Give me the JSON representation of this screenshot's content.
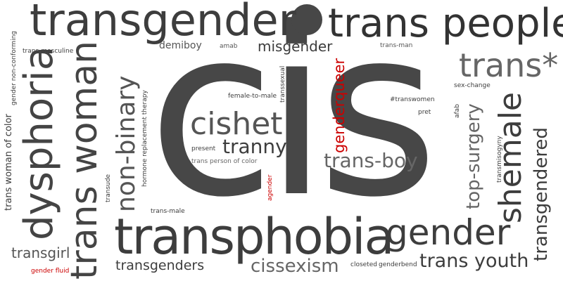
{
  "colors": {
    "background": "#ffffff",
    "primary": "#3d3d3d",
    "dark": "#333333",
    "mid": "#555555",
    "light": "#666666",
    "accent": "#cc0000"
  },
  "words": {
    "cis": "cis",
    "transgender": "transgender",
    "trans_people": "trans people",
    "trans_star": "trans*",
    "transphobia": "transphobia",
    "gender": "gender",
    "dysphoria": "dysphoria",
    "trans_woman": "trans woman",
    "non_binary": "non-binary",
    "shemale": "shemale",
    "transgendered": "transgendered",
    "top_surgery": "top-surgery",
    "cishet": "cishet",
    "tranny": "tranny",
    "trans_boy": "trans-boy",
    "genderqueer": "genderqueer",
    "misgender": "misgender",
    "trans_youth": "trans youth",
    "cissexism": "cissexism",
    "transgenders": "transgenders",
    "transgirl": "transgirl",
    "trans_woman_of_color": "trans woman of color",
    "demiboy": "demiboy",
    "amab": "amab",
    "trans_man": "trans-man",
    "trans_masculine": "trans-masculine",
    "gender_non_conforming": "gender non-conforming",
    "hormone_replacement_therapy": "hormone replacement therapy",
    "female_to_male": "female-to-male",
    "transsexual": "transsexual",
    "transwomen": "#transwomen",
    "sex_change": "sex-change",
    "pret": "pret",
    "afab": "afab",
    "present": "present",
    "trans_person_of_color": "trans person of color",
    "transude": "transude",
    "agender": "agender",
    "trans_male": "trans-male",
    "transmisogyny": "transmisogyny",
    "gender_fluid": "gender fluid",
    "closeted": "closeted",
    "genderbend": "genderbend"
  }
}
